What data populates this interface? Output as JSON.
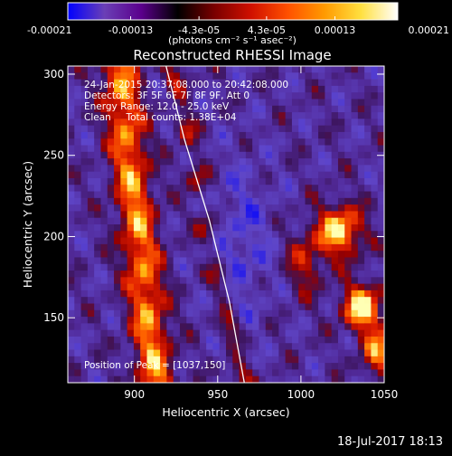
{
  "colorbar": {
    "tick_labels": [
      "-0.00021",
      "-0.00013",
      "-4.3e-05",
      "4.3e-05",
      "0.00013",
      "0.00021"
    ],
    "tick_values": [
      -0.00021,
      -0.00013,
      -4.3e-05,
      4.3e-05,
      0.00013,
      0.00021
    ],
    "range": [
      -0.00021,
      0.00021
    ],
    "units_label": "(photons cm⁻² s⁻¹ asec⁻²)",
    "colors": [
      "#0000ff",
      "#6a3fb6",
      "#5b008c",
      "#000000",
      "#7a0000",
      "#d01000",
      "#ff5000",
      "#ff9a00",
      "#ffe040",
      "#ffffff"
    ]
  },
  "chart_data": {
    "type": "heatmap",
    "title": "Reconstructed RHESSI Image",
    "xlabel": "Heliocentric X (arcsec)",
    "ylabel": "Heliocentric Y (arcsec)",
    "xlim": [
      860,
      1050
    ],
    "ylim": [
      110,
      305
    ],
    "xticks": [
      900,
      950,
      1000,
      1050
    ],
    "yticks": [
      150,
      200,
      250,
      300
    ],
    "annotations": [
      "24-Jan-2015 20:37:08.000 to 20:42:08.000",
      "Detectors: 3F 5F 6F 7F 8F 9F, Att 0",
      "Energy Range: 12.0 - 25.0 keV",
      "Clean     Total counts: 1.38E+04"
    ],
    "peak_label": "Position of Peak = [1037,150]",
    "peak": [
      1037,
      150
    ],
    "limb_curve": [
      [
        919,
        305
      ],
      [
        930,
        260
      ],
      [
        945,
        210
      ],
      [
        957,
        160
      ],
      [
        966,
        110
      ]
    ]
  },
  "footer": {
    "date": "18-Jul-2017 18:13"
  }
}
